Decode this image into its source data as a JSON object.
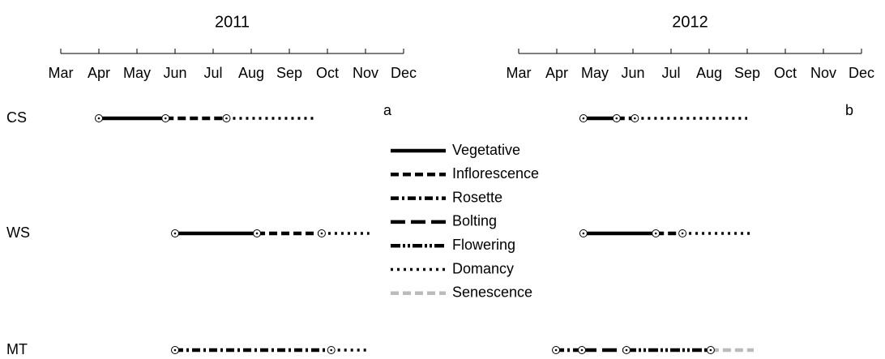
{
  "chart_data": {
    "type": "timeline",
    "rows": [
      "CS",
      "WS",
      "MT"
    ],
    "legend": [
      {
        "name": "Vegetative",
        "color": "#000000",
        "dash": "none",
        "width": 4.5
      },
      {
        "name": "Inflorescence",
        "color": "#000000",
        "dash": "10 5",
        "width": 4.5
      },
      {
        "name": "Rosette",
        "color": "#000000",
        "dash": "10 4 3 4",
        "width": 4.5
      },
      {
        "name": "Bolting",
        "color": "#000000",
        "dash": "18 7",
        "width": 4.5
      },
      {
        "name": "Flowering",
        "color": "#000000",
        "dash": "12 3 3 3 3 3",
        "width": 4.5
      },
      {
        "name": "Domancy",
        "color": "#000000",
        "dash": "3 5",
        "width": 3.5
      },
      {
        "name": "Senescence",
        "color": "#bbbbbb",
        "dash": "10 5",
        "width": 4.5
      }
    ],
    "panels": [
      {
        "title": "2011",
        "label": "a",
        "xlim": [
          3,
          12
        ],
        "xticks": [
          {
            "value": 3,
            "label": "Mar"
          },
          {
            "value": 4,
            "label": "Apr"
          },
          {
            "value": 5,
            "label": "May"
          },
          {
            "value": 6,
            "label": "Jun"
          },
          {
            "value": 7,
            "label": "Jul"
          },
          {
            "value": 8,
            "label": "Aug"
          },
          {
            "value": 9,
            "label": "Sep"
          },
          {
            "value": 10,
            "label": "Oct"
          },
          {
            "value": 11,
            "label": "Nov"
          },
          {
            "value": 12,
            "label": "Dec"
          }
        ],
        "rows": [
          [
            {
              "phase": "Vegetative",
              "start": 4.0,
              "end": 5.75
            },
            {
              "phase": "Inflorescence",
              "start": 5.75,
              "end": 7.35
            },
            {
              "phase": "Domancy",
              "start": 7.35,
              "end": 9.65
            }
          ],
          [
            {
              "phase": "Vegetative",
              "start": 6.0,
              "end": 8.15
            },
            {
              "phase": "Inflorescence",
              "start": 8.15,
              "end": 9.85
            },
            {
              "phase": "Domancy",
              "start": 9.85,
              "end": 11.1
            }
          ],
          [
            {
              "phase": "Rosette",
              "start": 6.0,
              "end": 10.1
            },
            {
              "phase": "Domancy",
              "start": 10.1,
              "end": 11.1
            }
          ]
        ]
      },
      {
        "title": "2012",
        "label": "b",
        "xlim": [
          3,
          12
        ],
        "xticks": [
          {
            "value": 3,
            "label": "Mar"
          },
          {
            "value": 4,
            "label": "Apr"
          },
          {
            "value": 5,
            "label": "May"
          },
          {
            "value": 6,
            "label": "Jun"
          },
          {
            "value": 7,
            "label": "Jul"
          },
          {
            "value": 8,
            "label": "Aug"
          },
          {
            "value": 9,
            "label": "Sep"
          },
          {
            "value": 10,
            "label": "Oct"
          },
          {
            "value": 11,
            "label": "Nov"
          },
          {
            "value": 12,
            "label": "Dec"
          }
        ],
        "rows": [
          [
            {
              "phase": "Vegetative",
              "start": 4.7,
              "end": 5.57
            },
            {
              "phase": "Inflorescence",
              "start": 5.57,
              "end": 6.05
            },
            {
              "phase": "Domancy",
              "start": 6.05,
              "end": 9.0
            }
          ],
          [
            {
              "phase": "Vegetative",
              "start": 4.7,
              "end": 6.6
            },
            {
              "phase": "Inflorescence",
              "start": 6.6,
              "end": 7.3
            },
            {
              "phase": "Domancy",
              "start": 7.3,
              "end": 9.17
            }
          ],
          [
            {
              "phase": "Rosette",
              "start": 3.98,
              "end": 4.66
            },
            {
              "phase": "Bolting",
              "start": 4.66,
              "end": 5.83
            },
            {
              "phase": "Flowering",
              "start": 5.83,
              "end": 8.04
            },
            {
              "phase": "Senescence",
              "start": 8.04,
              "end": 9.17
            }
          ]
        ]
      }
    ]
  }
}
